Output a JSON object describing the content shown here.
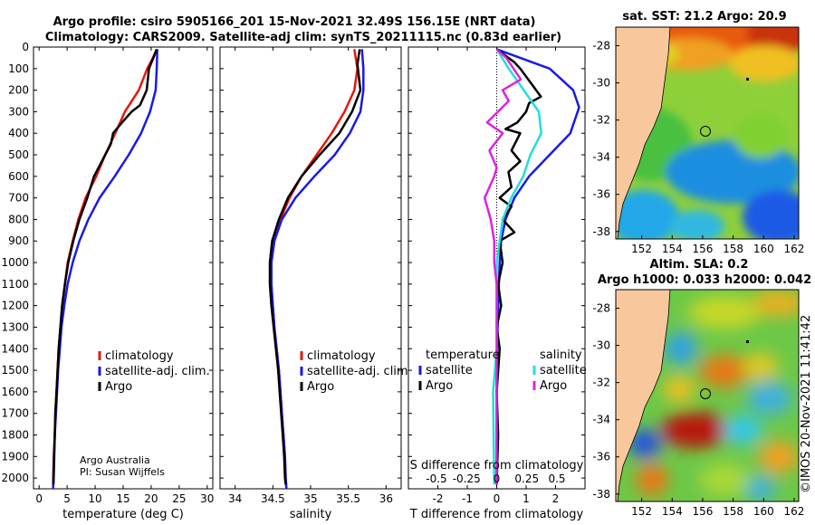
{
  "titles": {
    "line1": "Argo profile: csiro 5905166_201 15-Nov-2021 32.49S 156.15E (NRT data)",
    "line2": "Climatology: CARS2009. Satellite-adj clim: synTS_20211115.nc (0.83d earlier)"
  },
  "credit": {
    "line1": "Argo Australia",
    "line2": "PI: Susan Wijffels"
  },
  "stamp": "©IMOS 20-Nov-2021 11:41:42",
  "colors": {
    "clim": "#e8160c",
    "sat": "#1a1ae6",
    "argo": "#000000",
    "satS": "#22dddd",
    "argoS": "#dd22dd",
    "land": "#f8c89c"
  },
  "depth_ticks": [
    "0",
    "100",
    "200",
    "300",
    "400",
    "500",
    "600",
    "700",
    "800",
    "900",
    "1000",
    "1100",
    "1200",
    "1300",
    "1400",
    "1500",
    "1600",
    "1700",
    "1800",
    "1900",
    "2000"
  ],
  "chart_data": [
    {
      "type": "line",
      "name": "temperature",
      "xlabel": "temperature (deg C)",
      "ylabel": "depth",
      "xlim": [
        -1,
        31
      ],
      "ylim": [
        2050,
        0
      ],
      "xticks": [
        "0",
        "5",
        "10",
        "15",
        "20",
        "25",
        "30"
      ],
      "legend": [
        "climatology",
        "satellite-adj. clim.",
        "Argo"
      ],
      "series": [
        {
          "name": "climatology",
          "color": "clim",
          "points": [
            [
              21,
              10
            ],
            [
              20.3,
              50
            ],
            [
              19.3,
              100
            ],
            [
              17.8,
              200
            ],
            [
              15.3,
              300
            ],
            [
              13.6,
              400
            ],
            [
              11.8,
              500
            ],
            [
              10.2,
              600
            ],
            [
              8.3,
              700
            ],
            [
              7.0,
              800
            ],
            [
              6.0,
              900
            ],
            [
              5.1,
              1000
            ],
            [
              4.6,
              1100
            ],
            [
              4.1,
              1200
            ],
            [
              3.8,
              1300
            ],
            [
              3.5,
              1400
            ],
            [
              3.3,
              1500
            ],
            [
              3.1,
              1600
            ],
            [
              2.9,
              1700
            ],
            [
              2.8,
              1800
            ],
            [
              2.6,
              1900
            ],
            [
              2.5,
              2000
            ],
            [
              2.5,
              2050
            ]
          ]
        },
        {
          "name": "satellite-adj. clim.",
          "color": "sat",
          "points": [
            [
              21.1,
              10
            ],
            [
              21,
              100
            ],
            [
              20.8,
              200
            ],
            [
              19.8,
              300
            ],
            [
              18.2,
              400
            ],
            [
              16,
              500
            ],
            [
              13.5,
              600
            ],
            [
              10.8,
              700
            ],
            [
              8.8,
              800
            ],
            [
              7.2,
              900
            ],
            [
              6.0,
              1000
            ],
            [
              5.1,
              1100
            ],
            [
              4.5,
              1200
            ],
            [
              4.0,
              1300
            ],
            [
              3.7,
              1400
            ],
            [
              3.4,
              1500
            ],
            [
              3.2,
              1600
            ],
            [
              3.0,
              1700
            ],
            [
              2.8,
              1800
            ],
            [
              2.65,
              1900
            ],
            [
              2.55,
              2000
            ],
            [
              2.5,
              2050
            ]
          ]
        },
        {
          "name": "Argo",
          "color": "argo",
          "points": [
            [
              21,
              10
            ],
            [
              20.4,
              50
            ],
            [
              19.6,
              100
            ],
            [
              19.2,
              200
            ],
            [
              18,
              270
            ],
            [
              16.5,
              300
            ],
            [
              14.8,
              350
            ],
            [
              13.2,
              400
            ],
            [
              12.8,
              450
            ],
            [
              11.8,
              500
            ],
            [
              10.8,
              550
            ],
            [
              9.8,
              600
            ],
            [
              8.6,
              700
            ],
            [
              7.2,
              800
            ],
            [
              6.1,
              900
            ],
            [
              5.2,
              1000
            ],
            [
              4.6,
              1100
            ],
            [
              4.1,
              1200
            ],
            [
              3.8,
              1300
            ],
            [
              3.5,
              1400
            ],
            [
              3.3,
              1500
            ],
            [
              3.1,
              1600
            ],
            [
              2.9,
              1700
            ],
            [
              2.8,
              1800
            ],
            [
              2.7,
              1900
            ],
            [
              2.6,
              2000
            ],
            [
              2.55,
              2030
            ]
          ]
        }
      ]
    },
    {
      "type": "line",
      "name": "salinity",
      "xlabel": "salinity",
      "ylabel": "depth",
      "xlim": [
        33.8,
        36.2
      ],
      "ylim": [
        2050,
        0
      ],
      "xticks": [
        "34",
        "34.5",
        "35",
        "35.5",
        "36"
      ],
      "legend": [
        "climatology",
        "satellite-adj. clim.",
        "Argo"
      ],
      "series": [
        {
          "name": "climatology",
          "color": "clim",
          "points": [
            [
              35.58,
              10
            ],
            [
              35.62,
              100
            ],
            [
              35.58,
              200
            ],
            [
              35.45,
              300
            ],
            [
              35.28,
              400
            ],
            [
              35.08,
              500
            ],
            [
              34.88,
              600
            ],
            [
              34.72,
              700
            ],
            [
              34.6,
              800
            ],
            [
              34.52,
              900
            ],
            [
              34.48,
              1000
            ],
            [
              34.48,
              1100
            ],
            [
              34.5,
              1200
            ],
            [
              34.52,
              1300
            ],
            [
              34.55,
              1400
            ],
            [
              34.58,
              1500
            ],
            [
              34.6,
              1600
            ],
            [
              34.62,
              1700
            ],
            [
              34.64,
              1800
            ],
            [
              34.66,
              1900
            ],
            [
              34.67,
              2000
            ],
            [
              34.68,
              2050
            ]
          ]
        },
        {
          "name": "satellite-adj. clim.",
          "color": "sat",
          "points": [
            [
              35.68,
              10
            ],
            [
              35.7,
              100
            ],
            [
              35.7,
              200
            ],
            [
              35.66,
              300
            ],
            [
              35.52,
              400
            ],
            [
              35.32,
              500
            ],
            [
              35.05,
              600
            ],
            [
              34.8,
              700
            ],
            [
              34.62,
              800
            ],
            [
              34.52,
              900
            ],
            [
              34.48,
              1000
            ],
            [
              34.48,
              1100
            ],
            [
              34.5,
              1200
            ],
            [
              34.52,
              1300
            ],
            [
              34.55,
              1400
            ],
            [
              34.58,
              1500
            ],
            [
              34.6,
              1600
            ],
            [
              34.62,
              1700
            ],
            [
              34.64,
              1800
            ],
            [
              34.66,
              1900
            ],
            [
              34.67,
              2000
            ],
            [
              34.68,
              2050
            ]
          ]
        },
        {
          "name": "Argo",
          "color": "argo",
          "points": [
            [
              35.65,
              10
            ],
            [
              35.62,
              80
            ],
            [
              35.66,
              200
            ],
            [
              35.55,
              300
            ],
            [
              35.38,
              400
            ],
            [
              35.12,
              500
            ],
            [
              34.88,
              600
            ],
            [
              34.7,
              700
            ],
            [
              34.58,
              800
            ],
            [
              34.49,
              900
            ],
            [
              34.46,
              1000
            ],
            [
              34.46,
              1100
            ],
            [
              34.48,
              1200
            ],
            [
              34.51,
              1300
            ],
            [
              34.54,
              1400
            ],
            [
              34.57,
              1500
            ],
            [
              34.59,
              1600
            ],
            [
              34.61,
              1700
            ],
            [
              34.63,
              1800
            ],
            [
              34.65,
              1900
            ],
            [
              34.66,
              2000
            ],
            [
              34.67,
              2030
            ]
          ]
        }
      ]
    },
    {
      "type": "line",
      "name": "difference",
      "xlabel": "T difference from climatology",
      "ylim": [
        2050,
        0
      ],
      "xlim_T": [
        -3,
        3
      ],
      "xticks_T": [
        "-2",
        "-1",
        "0",
        "1",
        "2"
      ],
      "s_label": "S difference from climatology",
      "xticks_S": [
        "-0.5",
        "-0.25",
        "0",
        "0.25",
        "0.5"
      ],
      "legend_T_title": "temperature",
      "legend_S_title": "salinity",
      "legend_T": [
        "satellite",
        "Argo"
      ],
      "legend_S": [
        "satellite",
        "Argo"
      ],
      "series": [
        {
          "name": "temperature satellite",
          "color": "sat",
          "points": [
            [
              0,
              10
            ],
            [
              0.8,
              50
            ],
            [
              1.8,
              100
            ],
            [
              2.6,
              200
            ],
            [
              2.8,
              280
            ],
            [
              2.5,
              400
            ],
            [
              1.8,
              500
            ],
            [
              1.1,
              600
            ],
            [
              0.6,
              700
            ],
            [
              0.3,
              800
            ],
            [
              0.15,
              900
            ],
            [
              0.1,
              1000
            ],
            [
              0.05,
              1200
            ],
            [
              0,
              1500
            ],
            [
              0,
              2030
            ]
          ]
        },
        {
          "name": "temperature Argo",
          "color": "argo",
          "points": [
            [
              0,
              10
            ],
            [
              0.6,
              70
            ],
            [
              0.8,
              100
            ],
            [
              1.5,
              230
            ],
            [
              1.1,
              260
            ],
            [
              1.0,
              300
            ],
            [
              0.7,
              350
            ],
            [
              0.3,
              380
            ],
            [
              0.8,
              400
            ],
            [
              0.5,
              480
            ],
            [
              0.8,
              530
            ],
            [
              0.4,
              580
            ],
            [
              0.5,
              650
            ],
            [
              0.1,
              700
            ],
            [
              0.5,
              740
            ],
            [
              0.2,
              800
            ],
            [
              0.6,
              860
            ],
            [
              0.1,
              900
            ],
            [
              0.2,
              1000
            ],
            [
              0.05,
              1100
            ],
            [
              0.15,
              1200
            ],
            [
              0,
              1300
            ],
            [
              0.1,
              1400
            ],
            [
              0,
              1600
            ],
            [
              0.05,
              1800
            ],
            [
              0,
              2030
            ]
          ]
        },
        {
          "name": "salinity satellite",
          "color": "satS",
          "points": [
            [
              0,
              10
            ],
            [
              0.1,
              100
            ],
            [
              0.35,
              300
            ],
            [
              0.37,
              400
            ],
            [
              0.28,
              500
            ],
            [
              0.22,
              600
            ],
            [
              0.12,
              700
            ],
            [
              0.05,
              800
            ],
            [
              0,
              1000
            ],
            [
              0,
              1400
            ],
            [
              -0.03,
              1600
            ],
            [
              -0.02,
              2030
            ]
          ]
        },
        {
          "name": "salinity Argo",
          "color": "argoS",
          "points": [
            [
              0,
              10
            ],
            [
              0.08,
              50
            ],
            [
              0.2,
              150
            ],
            [
              0.05,
              200
            ],
            [
              0.1,
              250
            ],
            [
              -0.08,
              350
            ],
            [
              0.05,
              400
            ],
            [
              -0.06,
              480
            ],
            [
              0,
              560
            ],
            [
              -0.02,
              600
            ],
            [
              -0.1,
              700
            ],
            [
              -0.05,
              800
            ],
            [
              -0.02,
              900
            ],
            [
              -0.02,
              1000
            ],
            [
              0,
              1100
            ],
            [
              0,
              2030
            ]
          ]
        }
      ]
    },
    {
      "type": "heatmap",
      "name": "sst_map",
      "title": "sat. SST: 21.2 Argo: 20.9",
      "xlim": [
        150.3,
        162.3
      ],
      "ylim": [
        -38.4,
        -27
      ],
      "xticks": [
        "152",
        "154",
        "156",
        "158",
        "160",
        "162"
      ],
      "yticks": [
        "-28",
        "-30",
        "-32",
        "-34",
        "-36",
        "-38"
      ],
      "marker": [
        156.15,
        -32.49
      ]
    },
    {
      "type": "heatmap",
      "name": "sla_map",
      "title_line1": "Altim. SLA: 0.2",
      "title_line2": "Argo h1000: 0.033 h2000: 0.042",
      "xlim": [
        150.3,
        162.3
      ],
      "ylim": [
        -38.4,
        -27
      ],
      "xticks": [
        "152",
        "154",
        "156",
        "158",
        "160",
        "162"
      ],
      "yticks": [
        "-28",
        "-30",
        "-32",
        "-34",
        "-36",
        "-38"
      ],
      "marker": [
        156.15,
        -32.49
      ]
    }
  ]
}
